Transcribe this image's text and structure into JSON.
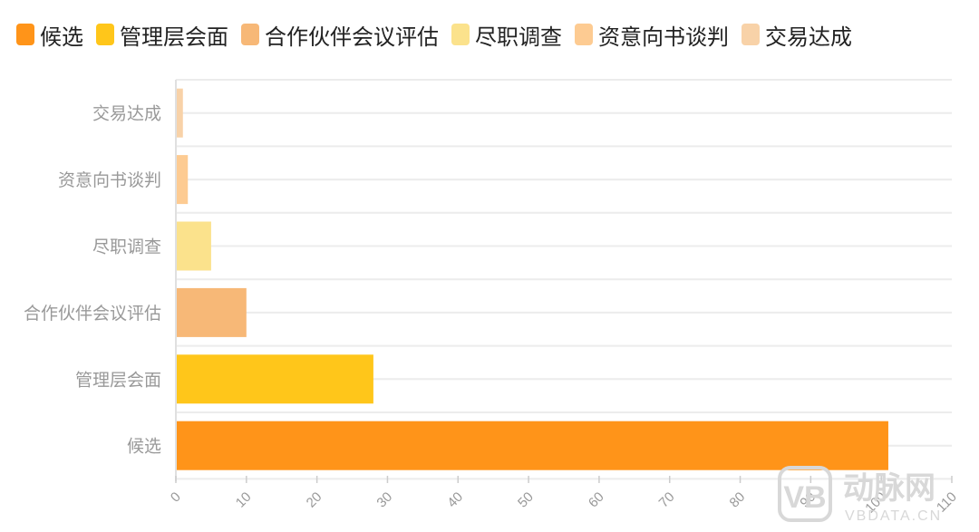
{
  "chart_data": {
    "type": "bar",
    "orientation": "horizontal",
    "categories": [
      "候选",
      "管理层会面",
      "合作伙伴会议评估",
      "尽职调查",
      "资意向书谈判",
      "交易达成"
    ],
    "values": [
      101,
      28,
      10,
      5,
      1.7,
      1
    ],
    "colors": [
      "#FF9419",
      "#FFC61A",
      "#F7B877",
      "#FBE28C",
      "#FDCB92",
      "#F8D2A8"
    ],
    "legend": [
      "候选",
      "管理层会面",
      "合作伙伴会议评估",
      "尽职调查",
      "资意向书谈判",
      "交易达成"
    ],
    "legend_position": "top-left",
    "xlim": [
      0,
      110
    ],
    "xticks": [
      0,
      10,
      20,
      30,
      40,
      50,
      60,
      70,
      80,
      90,
      100,
      110
    ],
    "grid": true,
    "title": "",
    "xlabel": "",
    "ylabel": ""
  },
  "watermark": {
    "logo": "VB",
    "text": "动脉网",
    "subtext": "VBDATA.CN"
  }
}
